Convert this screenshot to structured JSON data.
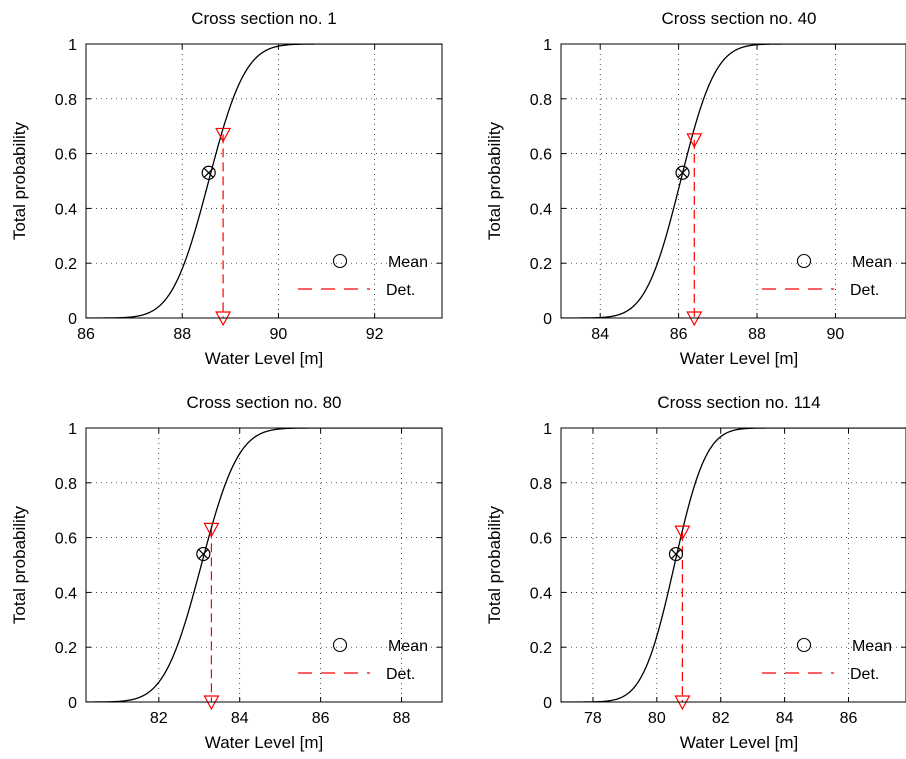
{
  "chart_data": [
    {
      "type": "line",
      "title": "Cross section no. 1",
      "xlabel": "Water Level [m]",
      "ylabel": "Total probability",
      "xlim": [
        86,
        93.4
      ],
      "ylim": [
        0,
        1
      ],
      "xticks": [
        86,
        88,
        90,
        92
      ],
      "xtick_labels": [
        "86",
        "88",
        "90",
        "92"
      ],
      "yticks": [
        0,
        0.2,
        0.4,
        0.6,
        0.8,
        1
      ],
      "ytick_labels": [
        "0",
        "0.2",
        "0.4",
        "0.6",
        "0.8",
        "1"
      ],
      "grid": true,
      "legend": {
        "position": "bottom-right",
        "entries": [
          "Mean",
          "Det."
        ]
      },
      "cdf": {
        "mean": 88.55,
        "std": 0.6
      },
      "mean_marker": {
        "x": 88.55,
        "y": 0.53
      },
      "det_line": {
        "x": 88.85,
        "y_top": 0.67
      },
      "colors": {
        "cdf": "#000000",
        "det": "#ff0000"
      }
    },
    {
      "type": "line",
      "title": "Cross section no. 40",
      "xlabel": "Water Level [m]",
      "ylabel": "Total probability",
      "xlim": [
        83,
        91.8
      ],
      "ylim": [
        0,
        1
      ],
      "xticks": [
        84,
        86,
        88,
        90
      ],
      "xtick_labels": [
        "84",
        "86",
        "88",
        "90"
      ],
      "yticks": [
        0,
        0.2,
        0.4,
        0.6,
        0.8,
        1
      ],
      "ytick_labels": [
        "0",
        "0.2",
        "0.4",
        "0.6",
        "0.8",
        "1"
      ],
      "grid": true,
      "legend": {
        "position": "bottom-right",
        "entries": [
          "Mean",
          "Det."
        ]
      },
      "cdf": {
        "mean": 86.05,
        "std": 0.7
      },
      "mean_marker": {
        "x": 86.1,
        "y": 0.53
      },
      "det_line": {
        "x": 86.4,
        "y_top": 0.65
      },
      "colors": {
        "cdf": "#000000",
        "det": "#ff0000"
      }
    },
    {
      "type": "line",
      "title": "Cross section no. 80",
      "xlabel": "Water Level [m]",
      "ylabel": "Total probability",
      "xlim": [
        80.2,
        89
      ],
      "ylim": [
        0,
        1
      ],
      "xticks": [
        82,
        84,
        86,
        88
      ],
      "xtick_labels": [
        "82",
        "84",
        "86",
        "88"
      ],
      "yticks": [
        0,
        0.2,
        0.4,
        0.6,
        0.8,
        1
      ],
      "ytick_labels": [
        "0",
        "0.2",
        "0.4",
        "0.6",
        "0.8",
        "1"
      ],
      "grid": true,
      "legend": {
        "position": "bottom-right",
        "entries": [
          "Mean",
          "Det."
        ]
      },
      "cdf": {
        "mean": 83.05,
        "std": 0.72
      },
      "mean_marker": {
        "x": 83.1,
        "y": 0.54
      },
      "det_line": {
        "x": 83.3,
        "y_top": 0.63
      },
      "colors": {
        "cdf": "#000000",
        "det": "#ff0000"
      }
    },
    {
      "type": "line",
      "title": "Cross section no. 114",
      "xlabel": "Water Level [m]",
      "ylabel": "Total probability",
      "xlim": [
        77,
        87.8
      ],
      "ylim": [
        0,
        1
      ],
      "xticks": [
        78,
        80,
        82,
        84,
        86
      ],
      "xtick_labels": [
        "78",
        "80",
        "82",
        "84",
        "86"
      ],
      "yticks": [
        0,
        0.2,
        0.4,
        0.6,
        0.8,
        1
      ],
      "ytick_labels": [
        "0",
        "0.2",
        "0.4",
        "0.6",
        "0.8",
        "1"
      ],
      "grid": true,
      "legend": {
        "position": "bottom-right",
        "entries": [
          "Mean",
          "Det."
        ]
      },
      "cdf": {
        "mean": 80.55,
        "std": 0.78
      },
      "mean_marker": {
        "x": 80.6,
        "y": 0.54
      },
      "det_line": {
        "x": 80.8,
        "y_top": 0.62
      },
      "colors": {
        "cdf": "#000000",
        "det": "#ff0000"
      }
    }
  ]
}
